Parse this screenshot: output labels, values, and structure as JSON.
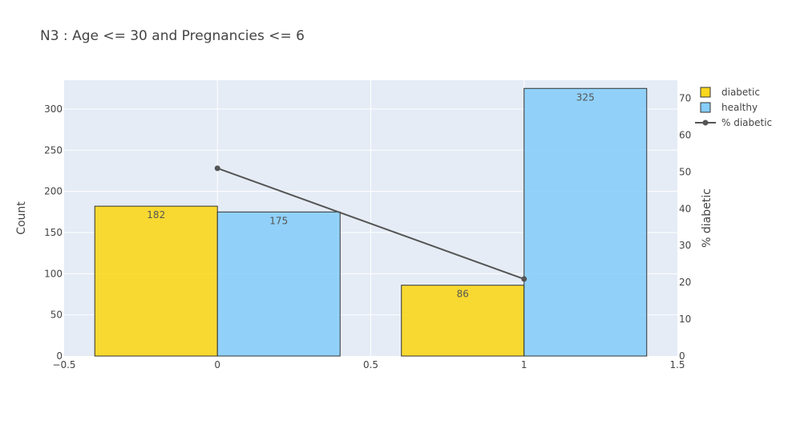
{
  "colors": {
    "plot_bg": "#e5ecf6",
    "grid": "#ffffff",
    "diabetic": "#f9d71c",
    "healthy": "#87cefa",
    "bar_outline": "#333333",
    "line": "#555555"
  },
  "chart_data": {
    "type": "bar",
    "title": "N3 : Age <= 30 and Pregnancies <= 6",
    "ylabel": "Count",
    "y2label": "% diabetic",
    "xlim": [
      -0.5,
      1.5
    ],
    "ylim": [
      0,
      335
    ],
    "y2lim": [
      0,
      74.9
    ],
    "x_ticks": [
      "−0.5",
      "0",
      "0.5",
      "1",
      "1.5"
    ],
    "x_tick_values": [
      -0.5,
      0,
      0.5,
      1,
      1.5
    ],
    "y_ticks": [
      "0",
      "50",
      "100",
      "150",
      "200",
      "250",
      "300"
    ],
    "y_tick_values": [
      0,
      50,
      100,
      150,
      200,
      250,
      300
    ],
    "y2_ticks": [
      "0",
      "10",
      "20",
      "30",
      "40",
      "50",
      "60",
      "70"
    ],
    "y2_tick_values": [
      0,
      10,
      20,
      30,
      40,
      50,
      60,
      70
    ],
    "grid": true,
    "legend_position": "top-right",
    "x": [
      0,
      1
    ],
    "series": [
      {
        "name": "diabetic",
        "kind": "bar",
        "values": [
          182,
          86
        ],
        "labels": [
          "182",
          "86"
        ]
      },
      {
        "name": "healthy",
        "kind": "bar",
        "values": [
          175,
          325
        ],
        "labels": [
          "175",
          "325"
        ]
      },
      {
        "name": "% diabetic",
        "kind": "line",
        "axis": "y2",
        "values": [
          50.98,
          20.92
        ]
      }
    ]
  }
}
